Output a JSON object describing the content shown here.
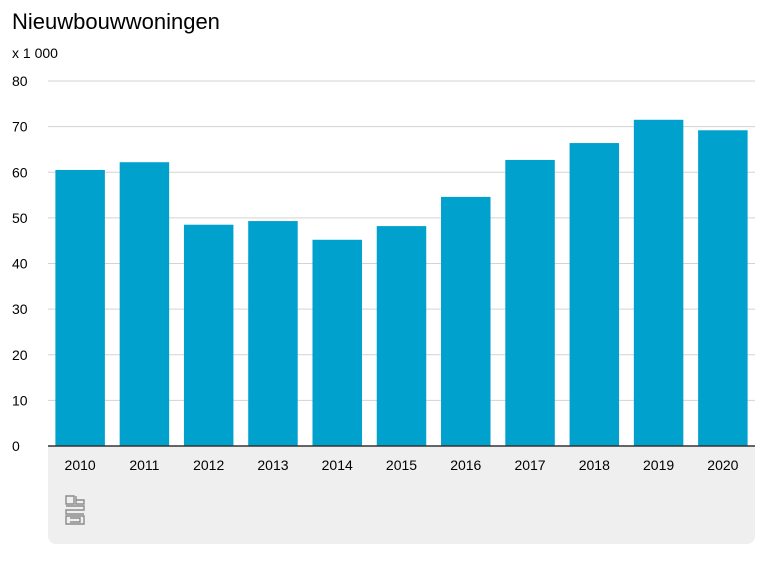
{
  "chart_data": {
    "type": "bar",
    "title": "Nieuwbouwwoningen",
    "unit_label": "x 1 000",
    "categories": [
      "2010",
      "2011",
      "2012",
      "2013",
      "2014",
      "2015",
      "2016",
      "2017",
      "2018",
      "2019",
      "2020"
    ],
    "values": [
      60.5,
      62.2,
      48.5,
      49.3,
      45.2,
      48.2,
      54.6,
      62.7,
      66.4,
      71.5,
      69.2
    ],
    "ylim": [
      0,
      80
    ],
    "yticks": [
      0,
      10,
      20,
      30,
      40,
      50,
      60,
      70,
      80
    ],
    "xlabel": "",
    "ylabel": "",
    "grid": true,
    "bar_color": "#00a1cd",
    "grid_color": "#d3d3d3",
    "axis_color": "#333333"
  },
  "footer": {
    "logo_icon": "cbs-logo-icon",
    "background_color": "#efefef"
  }
}
